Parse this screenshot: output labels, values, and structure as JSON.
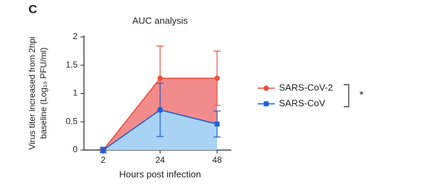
{
  "chart_data": {
    "type": "line",
    "panel_label": "C",
    "title": "AUC analysis",
    "x_label": "Hours post infection",
    "y_label": [
      "Virus titer increased from 2hpi",
      "baseline (Log₁₀ PFU/ml)"
    ],
    "categories": [
      "2",
      "24",
      "48"
    ],
    "ylim": [
      0,
      2
    ],
    "yticks": [
      0,
      0.5,
      1,
      1.5,
      2
    ],
    "series": [
      {
        "name": "SARS-CoV-2",
        "color": "#e8503f",
        "fill": "#f28b8b",
        "marker": "circle",
        "values": [
          0,
          1.27,
          1.27
        ],
        "errors": [
          0.02,
          0.57,
          0.48
        ]
      },
      {
        "name": "SARS-CoV",
        "color": "#1f5fd6",
        "fill": "#a9d3f5",
        "marker": "square",
        "values": [
          0,
          0.71,
          0.46
        ],
        "errors": [
          0.05,
          0.47,
          0.23
        ]
      }
    ],
    "annotation": "*"
  }
}
